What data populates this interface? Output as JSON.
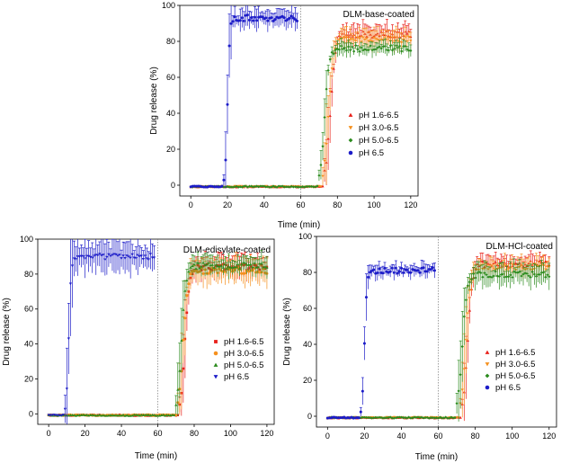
{
  "chart_data": [
    {
      "type": "scatter",
      "title": "DLM-base-coated",
      "xlabel": "Time (min)",
      "ylabel": "Drug release (%)",
      "xlim": [
        -6,
        124
      ],
      "ylim": [
        -6,
        100
      ],
      "xticks": [
        0,
        20,
        40,
        60,
        80,
        100,
        120
      ],
      "yticks": [
        0,
        20,
        40,
        60,
        80,
        100
      ],
      "divider_x": 60,
      "legend_position": "right",
      "series": [
        {
          "name": "pH 1.6-6.5",
          "marker": "triangle",
          "color": "#e8201a",
          "plateau": 84,
          "onset": 74,
          "tau": 2.2,
          "error": 4.5
        },
        {
          "name": "pH 3.0-6.5",
          "marker": "down-triangle",
          "color": "#f5901e",
          "plateau": 81,
          "onset": 73,
          "tau": 2.2,
          "error": 5.0
        },
        {
          "name": "pH 5.0-6.5",
          "marker": "diamond",
          "color": "#2a8a1c",
          "plateau": 76,
          "onset": 71,
          "tau": 2.0,
          "error": 3.0
        },
        {
          "name": "pH 6.5",
          "marker": "circle",
          "color": "#1c1cc8",
          "plateau": 93,
          "onset": 19,
          "tau": 1.0,
          "error": 4.5
        }
      ]
    },
    {
      "type": "scatter",
      "title": "DLM-edisylate-coated",
      "xlabel": "Time (min)",
      "ylabel": "Drug release (%)",
      "xlim": [
        -6,
        124
      ],
      "ylim": [
        -6,
        100
      ],
      "xticks": [
        0,
        20,
        40,
        60,
        80,
        100,
        120
      ],
      "yticks": [
        0,
        20,
        40,
        60,
        80,
        100
      ],
      "divider_x": 60,
      "legend_position": "right",
      "series": [
        {
          "name": "pH 1.6-6.5",
          "marker": "square",
          "color": "#e8201a",
          "plateau": 84,
          "onset": 73,
          "tau": 2.0,
          "error": 5.5
        },
        {
          "name": "pH 3.0-6.5",
          "marker": "circle",
          "color": "#f5901e",
          "plateau": 82,
          "onset": 72,
          "tau": 2.0,
          "error": 6.0
        },
        {
          "name": "pH 5.0-6.5",
          "marker": "triangle",
          "color": "#2a8a1c",
          "plateau": 85,
          "onset": 71,
          "tau": 2.0,
          "error": 5.0
        },
        {
          "name": "pH 6.5",
          "marker": "down-triangle",
          "color": "#1c1cc8",
          "plateau": 90,
          "onset": 10,
          "tau": 1.0,
          "error": 8.0
        }
      ]
    },
    {
      "type": "scatter",
      "title": "DLM-HCl-coated",
      "xlabel": "Time (min)",
      "ylabel": "Drug release (%)",
      "xlim": [
        -6,
        124
      ],
      "ylim": [
        -6,
        100
      ],
      "xticks": [
        0,
        20,
        40,
        60,
        80,
        100,
        120
      ],
      "yticks": [
        0,
        20,
        40,
        60,
        80,
        100
      ],
      "divider_x": 60,
      "legend_position": "right",
      "series": [
        {
          "name": "pH 1.6-6.5",
          "marker": "triangle",
          "color": "#e8201a",
          "plateau": 85,
          "onset": 74,
          "tau": 2.0,
          "error": 4.0
        },
        {
          "name": "pH 3.0-6.5",
          "marker": "down-triangle",
          "color": "#f5901e",
          "plateau": 83,
          "onset": 73,
          "tau": 2.0,
          "error": 4.5
        },
        {
          "name": "pH 5.0-6.5",
          "marker": "diamond",
          "color": "#2a8a1c",
          "plateau": 79,
          "onset": 71,
          "tau": 2.0,
          "error": 5.0
        },
        {
          "name": "pH 6.5",
          "marker": "circle",
          "color": "#1c1cc8",
          "plateau": 81,
          "onset": 19,
          "tau": 1.0,
          "error": 3.0
        }
      ]
    }
  ]
}
